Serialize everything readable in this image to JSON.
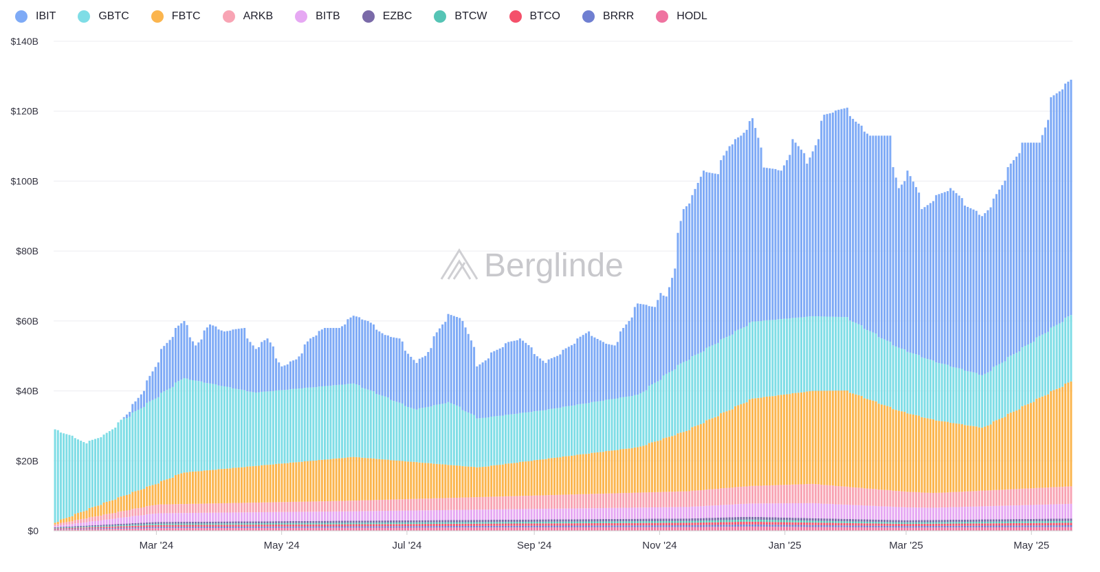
{
  "chart_data": {
    "type": "bar",
    "stacked": true,
    "title": "",
    "xlabel": "",
    "ylabel": "",
    "ylim": [
      0,
      140
    ],
    "y_ticks": [
      "$0",
      "$20B",
      "$40B",
      "$60B",
      "$80B",
      "$100B",
      "$120B",
      "$140B"
    ],
    "y_tick_values": [
      0,
      20,
      40,
      60,
      80,
      100,
      120,
      140
    ],
    "x_ticks": [
      "Mar '24",
      "May '24",
      "Jul '24",
      "Sep '24",
      "Nov '24",
      "Jan '25",
      "Mar '25",
      "May '25"
    ],
    "x_tick_dates": [
      "2024-03-01",
      "2024-05-01",
      "2024-07-01",
      "2024-09-01",
      "2024-11-01",
      "2025-01-01",
      "2025-03-01",
      "2025-05-01"
    ],
    "date_start": "2024-01-11",
    "date_end": "2025-05-21",
    "legend_position": "top-left",
    "grid": true,
    "units": "USD billions",
    "series": [
      {
        "name": "IBIT",
        "color": "#7eaaf6"
      },
      {
        "name": "GBTC",
        "color": "#7fdde6"
      },
      {
        "name": "FBTC",
        "color": "#fbb54e"
      },
      {
        "name": "ARKB",
        "color": "#f8a4b4"
      },
      {
        "name": "BITB",
        "color": "#e6a8f3"
      },
      {
        "name": "EZBC",
        "color": "#7a6aa8"
      },
      {
        "name": "BTCW",
        "color": "#55c4b5"
      },
      {
        "name": "BTCO",
        "color": "#f4506a"
      },
      {
        "name": "BRRR",
        "color": "#6f7fd1"
      },
      {
        "name": "HODL",
        "color": "#ef73a0"
      }
    ],
    "total_keypoints": [
      [
        "2024-01-11",
        29
      ],
      [
        "2024-01-22",
        26.5
      ],
      [
        "2024-01-26",
        25
      ],
      [
        "2024-02-05",
        27.5
      ],
      [
        "2024-02-12",
        31
      ],
      [
        "2024-02-20",
        37
      ],
      [
        "2024-02-26",
        43
      ],
      [
        "2024-03-04",
        52
      ],
      [
        "2024-03-11",
        58
      ],
      [
        "2024-03-14",
        60
      ],
      [
        "2024-03-20",
        53
      ],
      [
        "2024-03-27",
        59
      ],
      [
        "2024-04-03",
        57
      ],
      [
        "2024-04-12",
        58
      ],
      [
        "2024-04-18",
        52
      ],
      [
        "2024-04-24",
        55
      ],
      [
        "2024-05-01",
        47
      ],
      [
        "2024-05-08",
        49
      ],
      [
        "2024-05-15",
        55
      ],
      [
        "2024-05-22",
        58
      ],
      [
        "2024-05-29",
        58
      ],
      [
        "2024-06-05",
        61.5
      ],
      [
        "2024-06-12",
        60
      ],
      [
        "2024-06-20",
        56
      ],
      [
        "2024-06-27",
        55
      ],
      [
        "2024-07-05",
        48
      ],
      [
        "2024-07-10",
        50
      ],
      [
        "2024-07-18",
        59
      ],
      [
        "2024-07-22",
        62
      ],
      [
        "2024-07-29",
        60
      ],
      [
        "2024-08-05",
        47
      ],
      [
        "2024-08-12",
        51
      ],
      [
        "2024-08-20",
        54
      ],
      [
        "2024-08-26",
        55
      ],
      [
        "2024-09-06",
        48
      ],
      [
        "2024-09-12",
        50
      ],
      [
        "2024-09-20",
        53.5
      ],
      [
        "2024-09-27",
        57
      ],
      [
        "2024-10-04",
        54
      ],
      [
        "2024-10-10",
        53
      ],
      [
        "2024-10-16",
        59
      ],
      [
        "2024-10-22",
        65
      ],
      [
        "2024-10-30",
        64
      ],
      [
        "2024-11-01",
        68
      ],
      [
        "2024-11-05",
        67
      ],
      [
        "2024-11-08",
        75
      ],
      [
        "2024-11-13",
        92
      ],
      [
        "2024-11-18",
        96
      ],
      [
        "2024-11-22",
        103
      ],
      [
        "2024-11-29",
        102
      ],
      [
        "2024-12-05",
        110
      ],
      [
        "2024-12-11",
        113
      ],
      [
        "2024-12-17",
        118
      ],
      [
        "2024-12-22",
        104
      ],
      [
        "2024-12-31",
        103
      ],
      [
        "2025-01-06",
        112
      ],
      [
        "2025-01-13",
        105
      ],
      [
        "2025-01-21",
        119
      ],
      [
        "2025-01-31",
        121
      ],
      [
        "2025-02-05",
        117
      ],
      [
        "2025-02-12",
        113
      ],
      [
        "2025-02-21",
        113
      ],
      [
        "2025-02-26",
        98
      ],
      [
        "2025-03-03",
        103
      ],
      [
        "2025-03-10",
        92
      ],
      [
        "2025-03-17",
        96
      ],
      [
        "2025-03-24",
        98
      ],
      [
        "2025-03-31",
        93
      ],
      [
        "2025-04-08",
        90
      ],
      [
        "2025-04-14",
        95
      ],
      [
        "2025-04-21",
        104
      ],
      [
        "2025-04-28",
        111
      ],
      [
        "2025-05-06",
        111
      ],
      [
        "2025-05-12",
        124
      ],
      [
        "2025-05-21",
        129
      ]
    ],
    "segments_keypoints": {
      "small_funds_total": [
        [
          "2024-01-11",
          1
        ],
        [
          "2024-03-01",
          2.5
        ],
        [
          "2024-11-15",
          3.5
        ],
        [
          "2024-12-15",
          4
        ],
        [
          "2025-03-01",
          3
        ],
        [
          "2025-05-21",
          3.5
        ]
      ],
      "BITB": [
        [
          "2024-01-11",
          0.3
        ],
        [
          "2024-03-01",
          2.5
        ],
        [
          "2024-06-01",
          2.7
        ],
        [
          "2024-11-15",
          3.3
        ],
        [
          "2025-01-15",
          4.3
        ],
        [
          "2025-03-15",
          3.5
        ],
        [
          "2025-05-21",
          4.2
        ]
      ],
      "ARKB": [
        [
          "2024-01-11",
          0.5
        ],
        [
          "2024-03-01",
          2.5
        ],
        [
          "2024-06-01",
          3
        ],
        [
          "2024-11-15",
          4.5
        ],
        [
          "2025-01-15",
          5.5
        ],
        [
          "2025-03-15",
          4.2
        ],
        [
          "2025-05-21",
          5
        ]
      ],
      "FBTC": [
        [
          "2024-01-11",
          0.5
        ],
        [
          "2024-02-01",
          3
        ],
        [
          "2024-03-01",
          6
        ],
        [
          "2024-03-14",
          9
        ],
        [
          "2024-06-05",
          12.5
        ],
        [
          "2024-08-05",
          8.5
        ],
        [
          "2024-10-22",
          13
        ],
        [
          "2024-11-13",
          17
        ],
        [
          "2024-12-17",
          25
        ],
        [
          "2025-01-31",
          27.5
        ],
        [
          "2025-02-26",
          23
        ],
        [
          "2025-04-08",
          18
        ],
        [
          "2025-05-21",
          30
        ]
      ],
      "GBTC": [
        [
          "2024-01-11",
          27.5
        ],
        [
          "2024-01-26",
          23.5
        ],
        [
          "2024-02-15",
          22
        ],
        [
          "2024-03-14",
          27
        ],
        [
          "2024-04-18",
          21
        ],
        [
          "2024-06-05",
          21
        ],
        [
          "2024-07-05",
          15
        ],
        [
          "2024-07-22",
          18
        ],
        [
          "2024-08-05",
          14
        ],
        [
          "2024-09-06",
          14
        ],
        [
          "2024-10-22",
          15
        ],
        [
          "2024-11-13",
          20
        ],
        [
          "2024-12-17",
          22
        ],
        [
          "2025-01-31",
          21
        ],
        [
          "2025-02-26",
          18
        ],
        [
          "2025-04-08",
          15
        ],
        [
          "2025-05-21",
          19
        ]
      ]
    }
  }
}
